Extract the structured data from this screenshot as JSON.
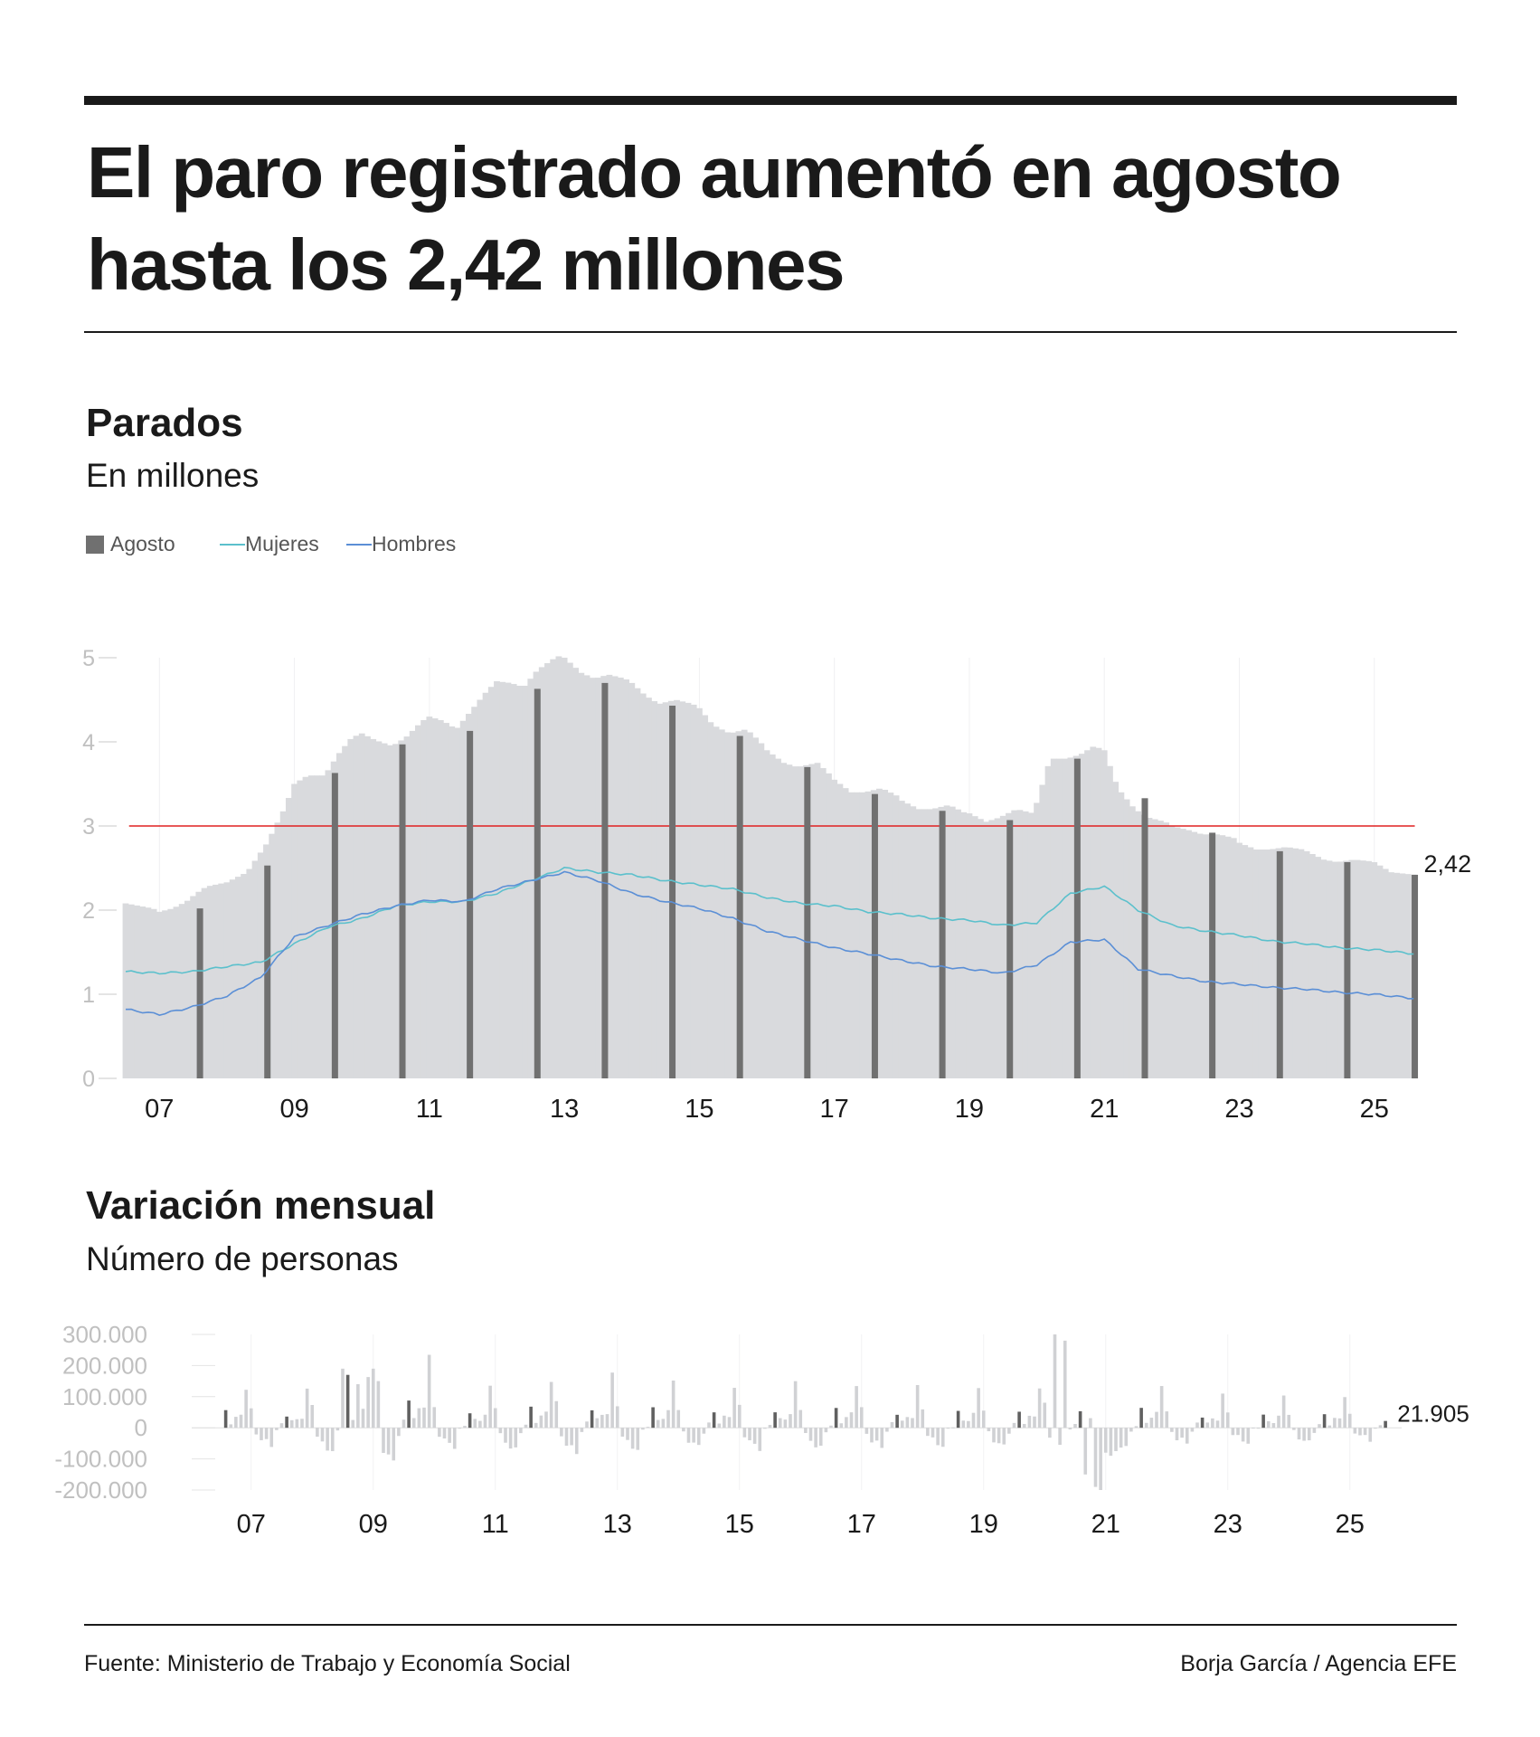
{
  "header": {
    "title": "El paro registrado aumentó en agosto hasta los 2,42 millones"
  },
  "chart_data": [
    {
      "type": "bar",
      "title": "Parados",
      "subtitle": "En millones",
      "legend": {
        "placement": "top-left",
        "items": [
          {
            "label": "Agosto",
            "color": "#707070",
            "kind": "box"
          },
          {
            "label": "Mujeres",
            "color": "#5bc0cc",
            "kind": "line"
          },
          {
            "label": "Hombres",
            "color": "#5b8fd6",
            "kind": "line"
          }
        ]
      },
      "x_range": [
        2006.5,
        2025.7
      ],
      "ylim": [
        0,
        5
      ],
      "y_ticks": [
        0,
        1,
        2,
        3,
        4,
        5
      ],
      "y_tick_labels": [
        "0",
        "1",
        "2",
        "3",
        "4",
        "5"
      ],
      "x_ticks": [
        {
          "value": 2007,
          "label": "07"
        },
        {
          "value": 2009,
          "label": "09"
        },
        {
          "value": 2011,
          "label": "11"
        },
        {
          "value": 2013,
          "label": "13"
        },
        {
          "value": 2015,
          "label": "15"
        },
        {
          "value": 2017,
          "label": "17"
        },
        {
          "value": 2019,
          "label": "19"
        },
        {
          "value": 2021,
          "label": "21"
        },
        {
          "value": 2023,
          "label": "23"
        },
        {
          "value": 2025,
          "label": "25"
        }
      ],
      "reference_line": {
        "value": 3,
        "color": "#e02020"
      },
      "grid": "vertical",
      "colors": {
        "monthly_bar": "#d9dadd",
        "august_bar": "#707070",
        "mujeres": "#5bc0cc",
        "hombres": "#5b8fd6"
      },
      "last_value_label": "2,42",
      "total_anchors": [
        [
          2006.5,
          2.08
        ],
        [
          2006.9,
          2.02
        ],
        [
          2007.0,
          1.98
        ],
        [
          2007.2,
          2.02
        ],
        [
          2007.4,
          2.1
        ],
        [
          2007.55,
          2.2
        ],
        [
          2007.7,
          2.28
        ],
        [
          2008.0,
          2.33
        ],
        [
          2008.3,
          2.45
        ],
        [
          2008.6,
          2.8
        ],
        [
          2008.85,
          3.2
        ],
        [
          2009.0,
          3.5
        ],
        [
          2009.2,
          3.6
        ],
        [
          2009.45,
          3.6
        ],
        [
          2009.65,
          3.85
        ],
        [
          2009.85,
          4.05
        ],
        [
          2010.0,
          4.1
        ],
        [
          2010.2,
          4.02
        ],
        [
          2010.45,
          3.95
        ],
        [
          2010.65,
          4.05
        ],
        [
          2010.9,
          4.25
        ],
        [
          2011.0,
          4.3
        ],
        [
          2011.2,
          4.25
        ],
        [
          2011.4,
          4.15
        ],
        [
          2011.6,
          4.35
        ],
        [
          2011.85,
          4.6
        ],
        [
          2012.0,
          4.72
        ],
        [
          2012.2,
          4.7
        ],
        [
          2012.4,
          4.65
        ],
        [
          2012.6,
          4.85
        ],
        [
          2012.9,
          5.02
        ],
        [
          2013.0,
          5.0
        ],
        [
          2013.25,
          4.82
        ],
        [
          2013.45,
          4.75
        ],
        [
          2013.65,
          4.8
        ],
        [
          2013.9,
          4.75
        ],
        [
          2014.0,
          4.7
        ],
        [
          2014.2,
          4.55
        ],
        [
          2014.4,
          4.45
        ],
        [
          2014.65,
          4.5
        ],
        [
          2014.9,
          4.45
        ],
        [
          2015.0,
          4.4
        ],
        [
          2015.2,
          4.2
        ],
        [
          2015.45,
          4.1
        ],
        [
          2015.7,
          4.15
        ],
        [
          2015.9,
          4.0
        ],
        [
          2016.0,
          3.9
        ],
        [
          2016.25,
          3.75
        ],
        [
          2016.45,
          3.7
        ],
        [
          2016.75,
          3.75
        ],
        [
          2016.95,
          3.6
        ],
        [
          2017.0,
          3.55
        ],
        [
          2017.25,
          3.4
        ],
        [
          2017.45,
          3.4
        ],
        [
          2017.7,
          3.45
        ],
        [
          2017.95,
          3.35
        ],
        [
          2018.0,
          3.3
        ],
        [
          2018.25,
          3.2
        ],
        [
          2018.45,
          3.2
        ],
        [
          2018.7,
          3.25
        ],
        [
          2018.95,
          3.15
        ],
        [
          2019.0,
          3.15
        ],
        [
          2019.25,
          3.05
        ],
        [
          2019.45,
          3.1
        ],
        [
          2019.7,
          3.2
        ],
        [
          2019.95,
          3.15
        ],
        [
          2020.05,
          3.4
        ],
        [
          2020.2,
          3.8
        ],
        [
          2020.45,
          3.8
        ],
        [
          2020.65,
          3.85
        ],
        [
          2020.85,
          3.95
        ],
        [
          2021.0,
          3.9
        ],
        [
          2021.2,
          3.45
        ],
        [
          2021.45,
          3.2
        ],
        [
          2021.65,
          3.1
        ],
        [
          2021.9,
          3.05
        ],
        [
          2022.0,
          3.0
        ],
        [
          2022.25,
          2.95
        ],
        [
          2022.45,
          2.9
        ],
        [
          2022.7,
          2.9
        ],
        [
          2022.95,
          2.85
        ],
        [
          2023.0,
          2.8
        ],
        [
          2023.25,
          2.72
        ],
        [
          2023.45,
          2.72
        ],
        [
          2023.7,
          2.75
        ],
        [
          2023.95,
          2.72
        ],
        [
          2024.0,
          2.7
        ],
        [
          2024.25,
          2.6
        ],
        [
          2024.45,
          2.57
        ],
        [
          2024.7,
          2.6
        ],
        [
          2024.95,
          2.58
        ],
        [
          2025.0,
          2.57
        ],
        [
          2025.25,
          2.45
        ],
        [
          2025.6,
          2.42
        ]
      ],
      "august_bars": [
        [
          2007.6,
          2.02
        ],
        [
          2008.6,
          2.53
        ],
        [
          2009.6,
          3.63
        ],
        [
          2010.6,
          3.97
        ],
        [
          2011.6,
          4.13
        ],
        [
          2012.6,
          4.63
        ],
        [
          2013.6,
          4.7
        ],
        [
          2014.6,
          4.43
        ],
        [
          2015.6,
          4.07
        ],
        [
          2016.6,
          3.7
        ],
        [
          2017.6,
          3.38
        ],
        [
          2018.6,
          3.18
        ],
        [
          2019.6,
          3.07
        ],
        [
          2020.6,
          3.8
        ],
        [
          2021.6,
          3.33
        ],
        [
          2022.6,
          2.92
        ],
        [
          2023.6,
          2.7
        ],
        [
          2024.6,
          2.57
        ],
        [
          2025.6,
          2.42
        ]
      ],
      "series": [
        {
          "name": "Mujeres",
          "points": [
            [
              2006.5,
              1.27
            ],
            [
              2007.0,
              1.25
            ],
            [
              2007.5,
              1.27
            ],
            [
              2008.0,
              1.33
            ],
            [
              2008.5,
              1.38
            ],
            [
              2009.0,
              1.6
            ],
            [
              2009.5,
              1.8
            ],
            [
              2010.0,
              1.9
            ],
            [
              2010.5,
              2.05
            ],
            [
              2011.0,
              2.1
            ],
            [
              2011.5,
              2.1
            ],
            [
              2012.0,
              2.2
            ],
            [
              2012.5,
              2.35
            ],
            [
              2013.0,
              2.5
            ],
            [
              2013.5,
              2.45
            ],
            [
              2014.0,
              2.42
            ],
            [
              2014.5,
              2.35
            ],
            [
              2015.0,
              2.3
            ],
            [
              2015.5,
              2.25
            ],
            [
              2016.0,
              2.15
            ],
            [
              2016.5,
              2.08
            ],
            [
              2017.0,
              2.05
            ],
            [
              2017.5,
              1.98
            ],
            [
              2018.0,
              1.95
            ],
            [
              2018.5,
              1.9
            ],
            [
              2019.0,
              1.88
            ],
            [
              2019.5,
              1.82
            ],
            [
              2020.0,
              1.85
            ],
            [
              2020.5,
              2.2
            ],
            [
              2021.0,
              2.28
            ],
            [
              2021.5,
              2.0
            ],
            [
              2022.0,
              1.82
            ],
            [
              2022.5,
              1.75
            ],
            [
              2023.0,
              1.7
            ],
            [
              2023.5,
              1.63
            ],
            [
              2024.0,
              1.6
            ],
            [
              2024.5,
              1.55
            ],
            [
              2025.0,
              1.53
            ],
            [
              2025.6,
              1.48
            ]
          ]
        },
        {
          "name": "Hombres",
          "points": [
            [
              2006.5,
              0.82
            ],
            [
              2007.0,
              0.76
            ],
            [
              2007.5,
              0.85
            ],
            [
              2008.0,
              0.98
            ],
            [
              2008.5,
              1.2
            ],
            [
              2009.0,
              1.68
            ],
            [
              2009.5,
              1.82
            ],
            [
              2010.0,
              1.95
            ],
            [
              2010.5,
              2.05
            ],
            [
              2011.0,
              2.12
            ],
            [
              2011.5,
              2.1
            ],
            [
              2012.0,
              2.25
            ],
            [
              2012.5,
              2.35
            ],
            [
              2013.0,
              2.45
            ],
            [
              2013.5,
              2.35
            ],
            [
              2014.0,
              2.2
            ],
            [
              2014.5,
              2.1
            ],
            [
              2015.0,
              2.02
            ],
            [
              2015.5,
              1.9
            ],
            [
              2016.0,
              1.75
            ],
            [
              2016.5,
              1.65
            ],
            [
              2017.0,
              1.55
            ],
            [
              2017.5,
              1.48
            ],
            [
              2018.0,
              1.4
            ],
            [
              2018.5,
              1.33
            ],
            [
              2019.0,
              1.3
            ],
            [
              2019.5,
              1.25
            ],
            [
              2020.0,
              1.35
            ],
            [
              2020.5,
              1.62
            ],
            [
              2021.0,
              1.65
            ],
            [
              2021.5,
              1.3
            ],
            [
              2022.0,
              1.22
            ],
            [
              2022.5,
              1.15
            ],
            [
              2023.0,
              1.12
            ],
            [
              2023.5,
              1.08
            ],
            [
              2024.0,
              1.06
            ],
            [
              2024.5,
              1.02
            ],
            [
              2025.0,
              1.0
            ],
            [
              2025.6,
              0.95
            ]
          ]
        }
      ]
    },
    {
      "type": "bar",
      "title": "Variación mensual",
      "subtitle": "Número de personas",
      "x_range": [
        2006.5,
        2025.7
      ],
      "ylim": [
        -200000,
        300000
      ],
      "y_ticks": [
        300000,
        200000,
        100000,
        0,
        -100000,
        -200000
      ],
      "y_tick_labels": [
        "300.000",
        "200.000",
        "100.000",
        "0",
        "-100.000",
        "-200.000"
      ],
      "x_ticks": [
        {
          "value": 2007,
          "label": "07"
        },
        {
          "value": 2009,
          "label": "09"
        },
        {
          "value": 2011,
          "label": "11"
        },
        {
          "value": 2013,
          "label": "13"
        },
        {
          "value": 2015,
          "label": "15"
        },
        {
          "value": 2017,
          "label": "17"
        },
        {
          "value": 2019,
          "label": "19"
        },
        {
          "value": 2021,
          "label": "21"
        },
        {
          "value": 2023,
          "label": "23"
        },
        {
          "value": 2025,
          "label": "25"
        }
      ],
      "last_value_label": "21.905",
      "last_value": 21905,
      "colors": {
        "month_bar": "#d0d1d4",
        "august_bar": "#606060"
      },
      "month_pattern": [
        60000,
        -20000,
        -40000,
        -50000,
        -60000,
        -10000,
        10000,
        50000,
        20000,
        30000,
        40000,
        130000
      ],
      "year_scale": {
        "2007": 0.9,
        "2008": 1.3,
        "2009": 1.8,
        "2010": 1.0,
        "2011": 1.2,
        "2012": 1.3,
        "2013": 1.2,
        "2014": 1.0,
        "2015": 1.1,
        "2016": 1.1,
        "2017": 1.0,
        "2018": 1.0,
        "2019": 1.0,
        "2020": 1.2,
        "2021": 1.1,
        "2022": 0.8,
        "2023": 0.8,
        "2024": 0.8,
        "2025": 0.6
      },
      "special_values": [
        [
          2008.5,
          190000
        ],
        [
          2008.6,
          170000
        ],
        [
          2008.75,
          140000
        ],
        [
          2009.0,
          190000
        ],
        [
          2009.1,
          150000
        ],
        [
          2020.2,
          300000
        ],
        [
          2020.3,
          280000
        ],
        [
          2020.7,
          -150000
        ],
        [
          2020.8,
          -190000
        ],
        [
          2020.9,
          -200000
        ],
        [
          2021.0,
          -80000
        ],
        [
          2021.1,
          -90000
        ],
        [
          2021.2,
          -75000
        ],
        [
          2025.6,
          21905
        ]
      ]
    }
  ],
  "footer": {
    "source": "Fuente: Ministerio de Trabajo y Economía Social",
    "credit": "Borja García / Agencia EFE"
  }
}
